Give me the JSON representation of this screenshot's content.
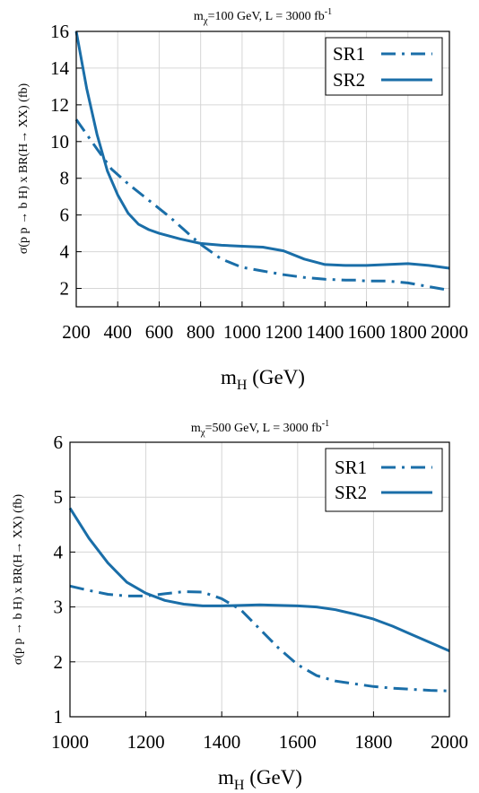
{
  "chart_data": [
    {
      "type": "line",
      "title_main": "m",
      "title_sub": "χ",
      "title_mid": "=100 GeV, L = 3000 fb",
      "title_sup": "-1",
      "xlabel_main": "m",
      "xlabel_sub": "H",
      "xlabel_unit": " (GeV)",
      "ylabel": "σ(p p → b H) x BR(H→ XX) (fb)",
      "xlim": [
        200,
        2000
      ],
      "ylim": [
        1,
        16
      ],
      "xticks": [
        200,
        400,
        600,
        800,
        1000,
        1200,
        1400,
        1600,
        1800,
        2000
      ],
      "yticks": [
        2,
        4,
        6,
        8,
        10,
        12,
        14,
        16
      ],
      "grid": true,
      "legend_position": "top-right",
      "series": [
        {
          "name": "SR1",
          "style": "dash-dot",
          "x": [
            200,
            300,
            370,
            450,
            550,
            650,
            750,
            800,
            900,
            1000,
            1100,
            1200,
            1300,
            1400,
            1500,
            1550,
            1600,
            1700,
            1800,
            1900,
            2000
          ],
          "y": [
            11.2,
            9.6,
            8.5,
            7.7,
            6.8,
            5.9,
            4.9,
            4.4,
            3.6,
            3.15,
            2.95,
            2.75,
            2.6,
            2.5,
            2.45,
            2.45,
            2.4,
            2.4,
            2.3,
            2.1,
            1.9
          ]
        },
        {
          "name": "SR2",
          "style": "solid",
          "x": [
            200,
            250,
            300,
            350,
            400,
            450,
            500,
            550,
            600,
            700,
            800,
            900,
            1000,
            1100,
            1200,
            1300,
            1400,
            1500,
            1600,
            1700,
            1800,
            1900,
            2000
          ],
          "y": [
            16,
            12.9,
            10.4,
            8.4,
            7.1,
            6.1,
            5.5,
            5.2,
            5.0,
            4.7,
            4.45,
            4.35,
            4.3,
            4.25,
            4.05,
            3.6,
            3.3,
            3.25,
            3.25,
            3.3,
            3.35,
            3.25,
            3.1
          ]
        }
      ]
    },
    {
      "type": "line",
      "title_main": "m",
      "title_sub": "χ",
      "title_mid": "=500 GeV, L = 3000 fb",
      "title_sup": "-1",
      "xlabel_main": "m",
      "xlabel_sub": "H",
      "xlabel_unit": " (GeV)",
      "ylabel": "σ(p p → b H) x BR(H→ XX) (fb)",
      "xlim": [
        1000,
        2000
      ],
      "ylim": [
        1,
        6
      ],
      "xticks": [
        1000,
        1200,
        1400,
        1600,
        1800,
        2000
      ],
      "yticks": [
        1,
        2,
        3,
        4,
        5,
        6
      ],
      "grid": true,
      "legend_position": "top-right",
      "series": [
        {
          "name": "SR1",
          "style": "dash-dot",
          "x": [
            1000,
            1050,
            1100,
            1150,
            1200,
            1250,
            1300,
            1350,
            1400,
            1450,
            1500,
            1550,
            1600,
            1650,
            1700,
            1750,
            1800,
            1850,
            1900,
            1950,
            2000
          ],
          "y": [
            3.38,
            3.3,
            3.23,
            3.2,
            3.2,
            3.24,
            3.28,
            3.27,
            3.15,
            2.95,
            2.6,
            2.25,
            1.95,
            1.75,
            1.65,
            1.6,
            1.55,
            1.52,
            1.5,
            1.48,
            1.47
          ]
        },
        {
          "name": "SR2",
          "style": "solid",
          "x": [
            1000,
            1050,
            1100,
            1150,
            1200,
            1250,
            1300,
            1350,
            1400,
            1500,
            1600,
            1650,
            1700,
            1750,
            1800,
            1850,
            1900,
            1950,
            2000
          ],
          "y": [
            4.8,
            4.25,
            3.8,
            3.45,
            3.25,
            3.12,
            3.05,
            3.02,
            3.02,
            3.04,
            3.02,
            3.0,
            2.95,
            2.87,
            2.78,
            2.65,
            2.5,
            2.35,
            2.2
          ]
        }
      ]
    }
  ]
}
